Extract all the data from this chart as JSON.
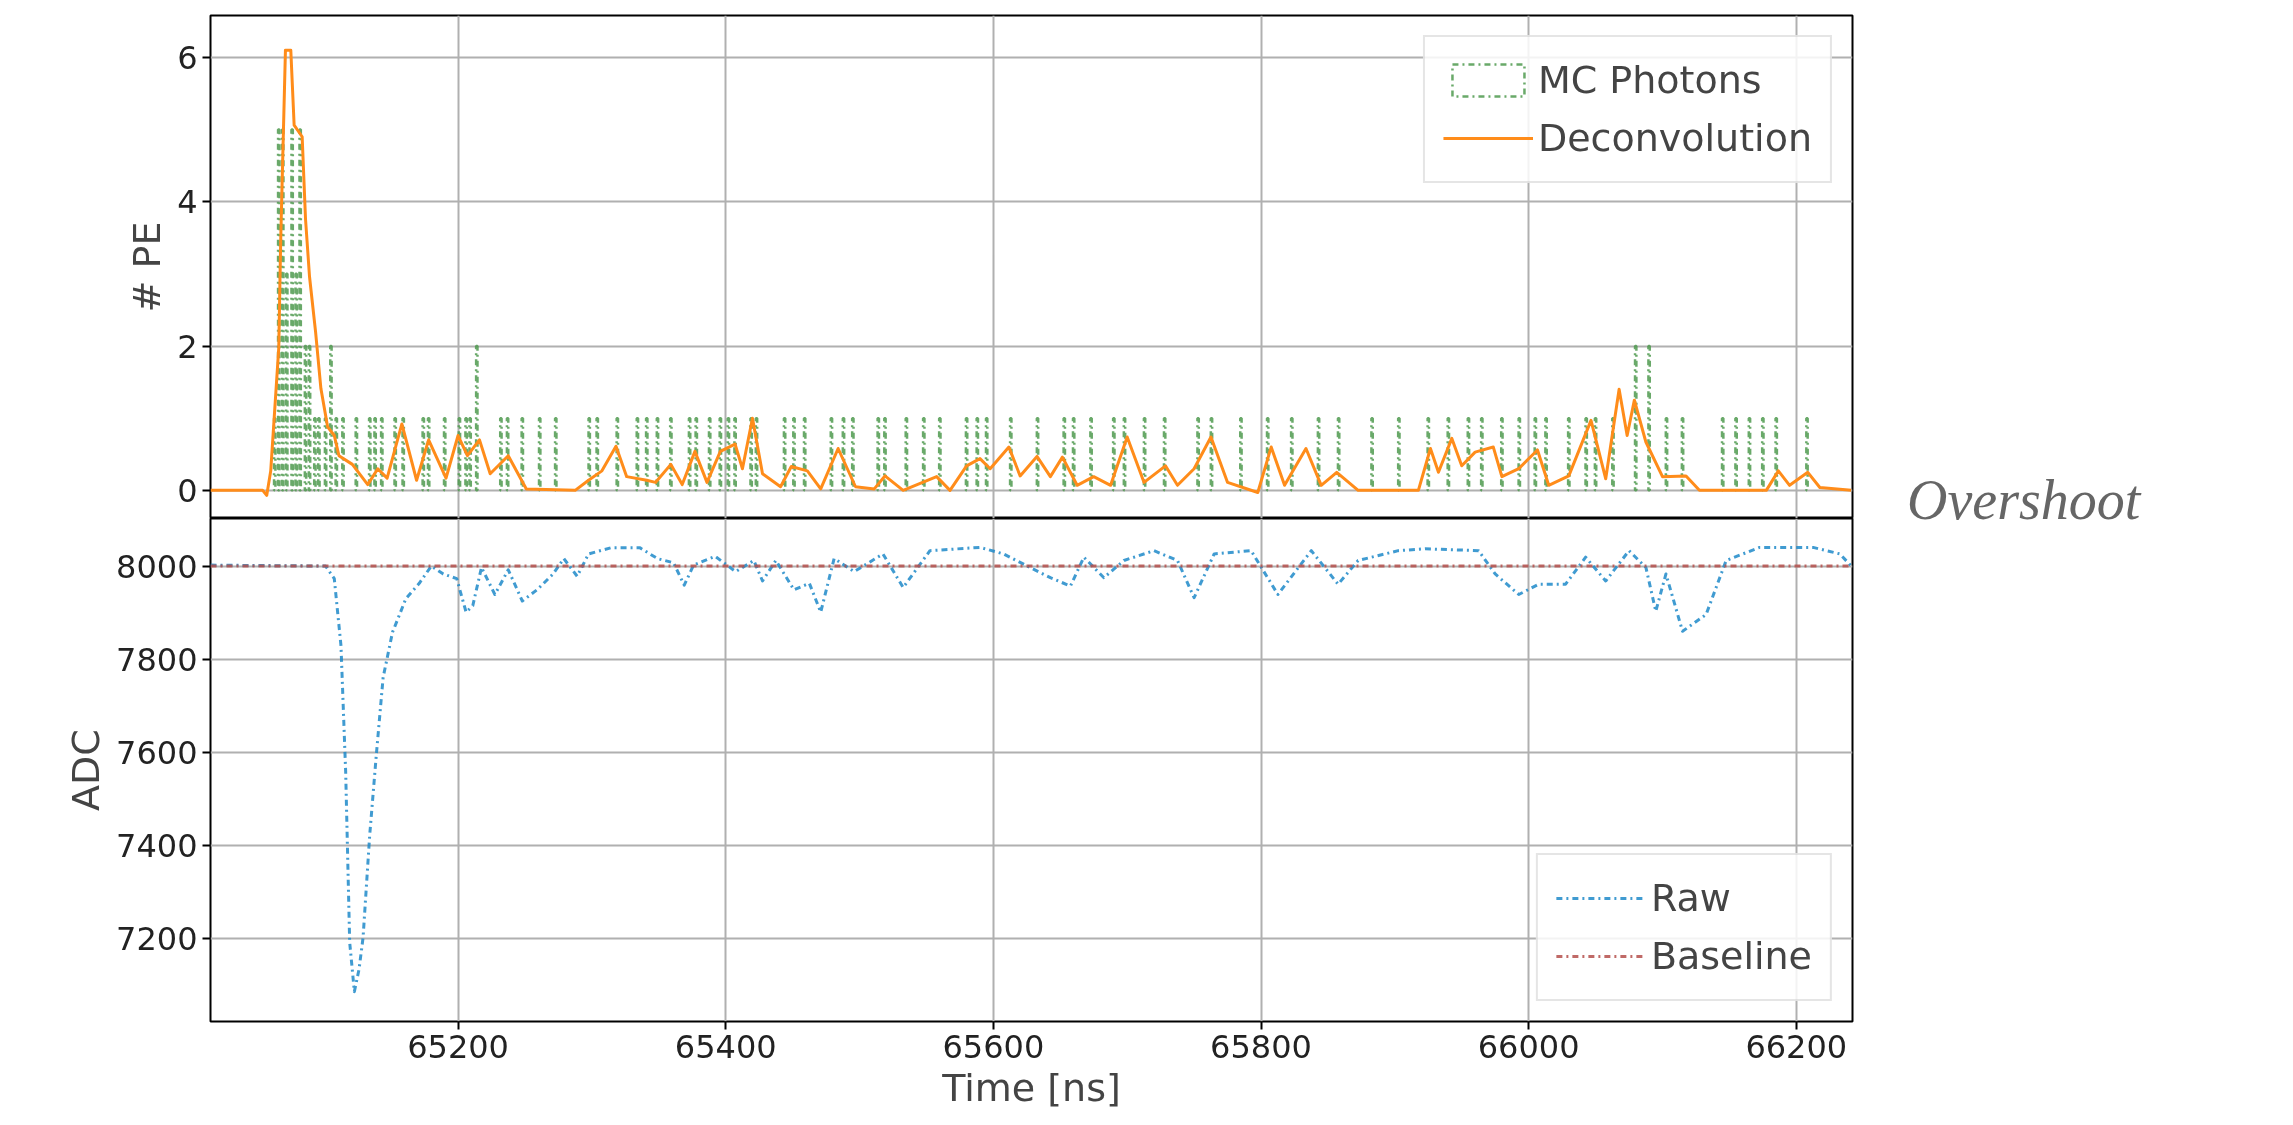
{
  "chart_data": [
    {
      "type": "line",
      "ylabel": "# PE",
      "xlim": [
        65015,
        66242
      ],
      "ylim": [
        -0.39,
        6.58
      ],
      "xticks": [
        65200,
        65400,
        65600,
        65800,
        66000,
        66200
      ],
      "yticks": [
        0,
        2,
        4,
        6
      ],
      "grid": true,
      "legend": "top right",
      "tick_labels": "y",
      "series": [
        {
          "name": "MC Photons",
          "type": "bar",
          "color": "#4f9a4f",
          "line_style": "dashdot",
          "x": [
            65063,
            65066,
            65069,
            65072,
            65076,
            65079,
            65082,
            65086,
            65089,
            65093,
            65096,
            65101,
            65105,
            65109,
            65114,
            65124,
            65134,
            65138,
            65143,
            65153,
            65159,
            65174,
            65178,
            65190,
            65201,
            65206,
            65209,
            65214,
            65232,
            65237,
            65248,
            65261,
            65273,
            65298,
            65304,
            65319,
            65334,
            65341,
            65349,
            65359,
            65373,
            65378,
            65388,
            65396,
            65402,
            65407,
            65419,
            65423,
            65444,
            65451,
            65459,
            65479,
            65488,
            65495,
            65514,
            65519,
            65535,
            65548,
            65560,
            65580,
            65588,
            65595,
            65613,
            65633,
            65653,
            65660,
            65673,
            65690,
            65698,
            65713,
            65728,
            65753,
            65763,
            65785,
            65805,
            65823,
            65843,
            65858,
            65883,
            65903,
            65925,
            65940,
            65955,
            65965,
            65980,
            65993,
            66005,
            66013,
            66030,
            66043,
            66050,
            66063,
            66080,
            66090,
            66103,
            66115,
            66145,
            66155,
            66165,
            66175,
            66185,
            66208
          ],
          "values": [
            1,
            5,
            5,
            3,
            5,
            3,
            5,
            2,
            2,
            1,
            1,
            1,
            2,
            1,
            1,
            1,
            1,
            1,
            1,
            1,
            1,
            1,
            1,
            1,
            1,
            1,
            1,
            2,
            1,
            1,
            1,
            1,
            1,
            1,
            1,
            1,
            1,
            1,
            1,
            1,
            1,
            1,
            1,
            1,
            1,
            1,
            1,
            1,
            1,
            1,
            1,
            1,
            1,
            1,
            1,
            1,
            1,
            1,
            1,
            1,
            1,
            1,
            1,
            1,
            1,
            1,
            1,
            1,
            1,
            1,
            1,
            1,
            1,
            1,
            1,
            1,
            1,
            1,
            1,
            1,
            1,
            1,
            1,
            1,
            1,
            1,
            1,
            1,
            1,
            1,
            1,
            1,
            2,
            2,
            1,
            1,
            1,
            1,
            1,
            1,
            1,
            1
          ]
        },
        {
          "name": "Deconvolution",
          "color": "#ff8c1a",
          "line_style": "solid",
          "x": [
            65015,
            65054,
            65057,
            65060,
            65066,
            65067.5,
            65071,
            65075,
            65077.5,
            65083.5,
            65086,
            65089,
            65093.5,
            65097.5,
            65102.5,
            65107.5,
            65111,
            65121,
            65132.5,
            65140,
            65147,
            65158,
            65169,
            65178,
            65191,
            65200,
            65207,
            65216,
            65224,
            65237.5,
            65251,
            65287.5,
            65297.5,
            65307.5,
            65318,
            65326,
            65341,
            65347.5,
            65359,
            65367.5,
            65377,
            65386,
            65396,
            65407,
            65412.5,
            65420,
            65427.5,
            65441,
            65449,
            65461,
            65471,
            65484,
            65497,
            65511,
            65519,
            65532.6,
            65557.6,
            65567.6,
            65580,
            65590,
            65597.6,
            65611.6,
            65620,
            65632.6,
            65642.6,
            65651.6,
            65662.6,
            65675,
            65687.6,
            65700,
            65712.6,
            65728.6,
            65737.6,
            65750,
            65762.6,
            65775,
            65797.6,
            65807.6,
            65817.6,
            65833.6,
            65845,
            65856.6,
            65872.6,
            65917.6,
            65926.6,
            65932.6,
            65942.6,
            65950,
            65960,
            65973.6,
            65980,
            65992.6,
            66006.6,
            66015,
            66030,
            66046.6,
            66057.6,
            66067.6,
            66073.6,
            66079,
            66087.6,
            66100,
            66117.6,
            66127.6,
            66177.6,
            66186.6,
            66195,
            66208.6,
            66217.6,
            66241
          ],
          "values": [
            0,
            0,
            -0.07,
            0.27,
            1.97,
            3.5,
            6.1,
            6.1,
            5.06,
            4.9,
            3.76,
            2.96,
            2.2,
            1.41,
            0.88,
            0.76,
            0.48,
            0.36,
            0.08,
            0.3,
            0.17,
            0.92,
            0.14,
            0.7,
            0.17,
            0.76,
            0.48,
            0.7,
            0.23,
            0.48,
            0.02,
            0,
            0.14,
            0.27,
            0.61,
            0.19,
            0.14,
            0.11,
            0.36,
            0.08,
            0.54,
            0.11,
            0.54,
            0.64,
            0.3,
            1.0,
            0.23,
            0.05,
            0.33,
            0.27,
            0.02,
            0.58,
            0.05,
            0.02,
            0.2,
            0,
            0.19,
            0,
            0.34,
            0.44,
            0.3,
            0.6,
            0.2,
            0.47,
            0.19,
            0.46,
            0.07,
            0.19,
            0.07,
            0.74,
            0.11,
            0.34,
            0.07,
            0.3,
            0.74,
            0.11,
            -0.03,
            0.6,
            0.07,
            0.58,
            0.07,
            0.25,
            0,
            0,
            0.58,
            0.25,
            0.72,
            0.34,
            0.53,
            0.6,
            0.19,
            0.3,
            0.56,
            0.07,
            0.2,
            0.97,
            0.16,
            1.4,
            0.76,
            1.25,
            0.67,
            0.19,
            0.2,
            0,
            0,
            0.27,
            0.07,
            0.25,
            0.04,
            0
          ]
        }
      ]
    },
    {
      "type": "line",
      "xlabel": "Time [ns]",
      "ylabel": "ADC",
      "xlim": [
        65015,
        66242
      ],
      "ylim": [
        7023,
        8102
      ],
      "xticks": [
        65200,
        65400,
        65600,
        65800,
        66000,
        66200
      ],
      "yticks": [
        7200,
        7400,
        7600,
        7800,
        8000
      ],
      "grid": true,
      "legend": "bottom right",
      "annotations": [
        "Overshoot"
      ],
      "series": [
        {
          "name": "Raw",
          "color": "#1f8ac9",
          "line_style": "dashdot",
          "x": [
            65015,
            65101,
            65107.5,
            65112.5,
            65116,
            65119,
            65122.5,
            65126,
            65129,
            65134,
            65139,
            65144,
            65151,
            65161,
            65171,
            65180,
            65189,
            65199,
            65206,
            65211,
            65217.5,
            65227.5,
            65237.5,
            65248,
            65259,
            65271,
            65279,
            65289,
            65297.5,
            65314,
            65336,
            65349,
            65361,
            65369,
            65376,
            65392,
            65407.5,
            65421,
            65427.5,
            65437.5,
            65451,
            65462.5,
            65471,
            65481,
            65496,
            65517.5,
            65532.6,
            65552.6,
            65590,
            65607.6,
            65622.6,
            65642.6,
            65657.6,
            65667.6,
            65682.6,
            65697.6,
            65720,
            65737.6,
            65750,
            65765,
            65792.6,
            65812.6,
            65837.6,
            65857.6,
            65872.6,
            65902.6,
            65922.6,
            65962.6,
            65975,
            65992.6,
            66007.6,
            66027.6,
            66042.6,
            66057.6,
            66075,
            66087.6,
            66095,
            66102.6,
            66115,
            66132.6,
            66147.6,
            66172.6,
            66212.6,
            66232.6,
            66241
          ],
          "values": [
            8002,
            8000,
            7973,
            7829,
            7559,
            7193,
            7087,
            7135,
            7203,
            7424,
            7598,
            7761,
            7858,
            7930,
            7963,
            8000,
            7983,
            7973,
            7901,
            7915,
            7997,
            7939,
            7992,
            7925,
            7949,
            7983,
            8016,
            7978,
            8026,
            8039,
            8039,
            8016,
            8007,
            7959,
            8002,
            8021,
            7988,
            8012,
            7968,
            8012,
            7949,
            7963,
            7901,
            8016,
            7988,
            8026,
            7954,
            8033,
            8040,
            8026,
            8004,
            7975,
            7957,
            8019,
            7975,
            8012,
            8033,
            8012,
            7932,
            8026,
            8033,
            7939,
            8033,
            7961,
            8012,
            8033,
            8037,
            8033,
            7983,
            7939,
            7961,
            7961,
            8019,
            7968,
            8033,
            7997,
            7903,
            7983,
            7860,
            7896,
            8012,
            8040,
            8040,
            8026,
            8000
          ]
        },
        {
          "name": "Baseline",
          "color": "#b5504c",
          "line_style": "dashdot",
          "x": [
            65015,
            66242
          ],
          "values": [
            8000,
            8000
          ]
        }
      ]
    }
  ]
}
